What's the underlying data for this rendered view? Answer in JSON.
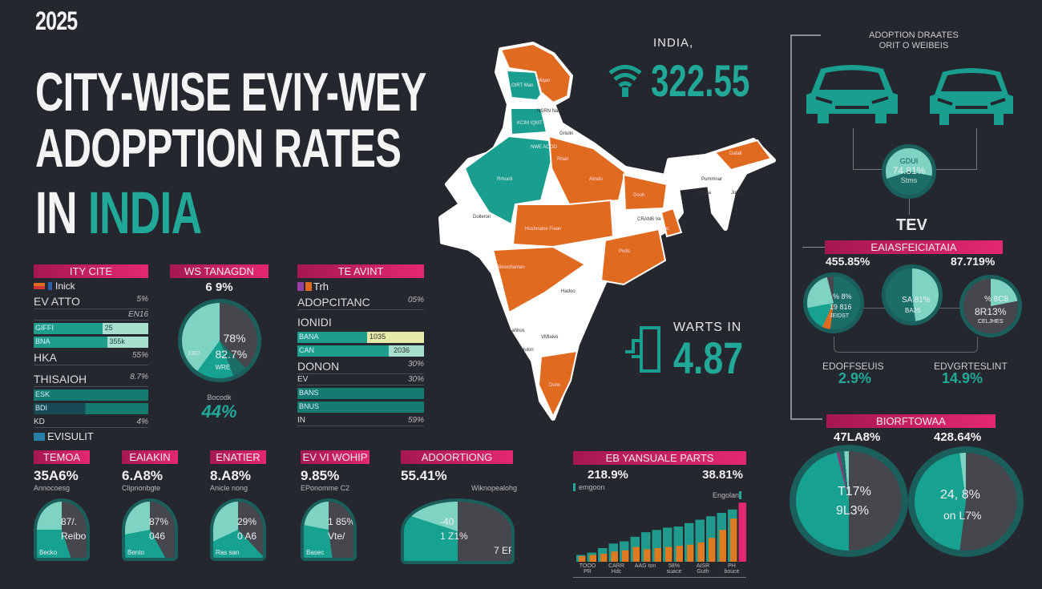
{
  "title": {
    "year": "2025",
    "line1": "CITY-WISE EVIY-WEY",
    "line2": "ADOPPTION RATES",
    "line3_prefix": "IN ",
    "line3_accent": "INDIA"
  },
  "colors": {
    "background": "#24272e",
    "teal": "#22a898",
    "light_teal": "#7fd3c2",
    "orange": "#e06a1f",
    "pink": "#e4286f",
    "dark_slice": "#46474c"
  },
  "panel1": {
    "header": "ITY CITE",
    "legend": "Inick",
    "rows": [
      {
        "label": "EV ATTO",
        "value": "5%"
      },
      {
        "label": "",
        "value": "EN16"
      },
      {
        "bar": "GIFFI",
        "value": "25",
        "fill": 0.6
      },
      {
        "bar": "BNA",
        "value": "355k",
        "fill": 0.64
      },
      {
        "label": "HKA",
        "value": "55%"
      },
      {
        "label": "THISAIOH",
        "value": "8.7%"
      },
      {
        "bar": "ESK",
        "fill": 1
      },
      {
        "bar": "BDI",
        "fill": 1
      },
      {
        "label": "KD",
        "value": "4%"
      }
    ]
  },
  "panel2": {
    "header": "WS TANAGDN",
    "value": "6 9%",
    "pie_labels": [
      "78%",
      "82.7%",
      "1307",
      "WRE"
    ],
    "caption": "Bocodk",
    "big_value": "44%"
  },
  "panel3": {
    "header": "TE AVINT",
    "legend": "Trh",
    "rows": [
      {
        "label": "ADOPCITANC",
        "value": "05%"
      },
      {
        "label": "IONIDI",
        "value": ""
      },
      {
        "bar": "BANA",
        "value": "1035",
        "fill": 0.55
      },
      {
        "bar": "CAN",
        "value": "2036",
        "fill": 0.7
      },
      {
        "label": "DONON",
        "value": "30%"
      },
      {
        "label": "EV",
        "value": "30%"
      },
      {
        "bar": "BANS",
        "fill": 1
      },
      {
        "bar": "BNUS",
        "fill": 1
      },
      {
        "label": "IN",
        "value": "59%"
      }
    ]
  },
  "section_label": "EVISULIT",
  "mini_cards": [
    {
      "header": "TEMOA",
      "value": "35A6%",
      "sub": "Annocoesg",
      "pie": [
        "87/.",
        "Reibo"
      ],
      "footer": "Becko",
      "share": 0.45
    },
    {
      "header": "EAIAKIN",
      "value": "6.A8%",
      "sub": "Clipnonbgte",
      "pie": [
        "87%",
        "046"
      ],
      "footer": "Bento",
      "share": 0.42
    },
    {
      "header": "ENATIER",
      "value": "8.A8%",
      "sub": "Anicle nong",
      "pie": [
        "29%",
        "0 A6"
      ],
      "footer": "Ras san",
      "share": 0.38
    },
    {
      "header": "EV VI WOHIP",
      "value": "9.85%",
      "sub": "EPonomme C2",
      "pie": [
        "1 85%",
        "Vte/"
      ],
      "footer": "Basec",
      "share": 0.48
    },
    {
      "header": "ADOORTIONG",
      "value": "55.41%",
      "sub": "Wiknopealohg",
      "pie": [
        "-40",
        "1 Z1%",
        "7 ER"
      ],
      "footer": "",
      "share": 0.5
    }
  ],
  "bar_chart": {
    "header": "EB YANSUALE PARTS",
    "value_left": "218.9%",
    "value_right": "38.81%",
    "legend_left": "emgoon",
    "legend_right": "Engolan",
    "series_teal": [
      6,
      8,
      12,
      16,
      18,
      22,
      26,
      28,
      30,
      31,
      34,
      37,
      40,
      43,
      46
    ],
    "series_orange": [
      5,
      6,
      7,
      9,
      10,
      13,
      11,
      12,
      13,
      14,
      15,
      17,
      21,
      28,
      38
    ],
    "highlight_last": 52,
    "x_labels": [
      "TOOO PR",
      "CARR Hdc",
      "AAG ton",
      "58% suace",
      "AISR Guth",
      "PH bouce"
    ]
  },
  "india_stat": {
    "label": "INDIA,",
    "value": "322.55"
  },
  "warts_stat": {
    "label": "WARTS IN",
    "value": "4.87"
  },
  "map_labels": [
    "OIRT Man",
    "Miqan",
    "NSRN Nam",
    "KCIM IQMT",
    "Griulin",
    "NWE AOOD",
    "Rhan",
    "Rrhuoti",
    "Alindo",
    "Dolleron",
    "Dooh",
    "Hoshnaine Fiaan",
    "CRANB Ve",
    "Tubc",
    "Slinochaman",
    "Hadoo",
    "Pudo",
    "Lahhos",
    "VMlalvo",
    "Hulon",
    "Duno",
    "Dafali",
    "Pummnar",
    "Bonsa",
    "Joha"
  ],
  "right": {
    "title1": "ADOPTION DRAATES",
    "title2": "ORIT O WEIBEIS",
    "center_circle": [
      "GDUI",
      "74.81%",
      "Stms"
    ],
    "tev": "TEV",
    "band1": "EAIASFEICIATAIA",
    "v1": "455.85%",
    "v2": "87.719%",
    "small_pies": [
      [
        "% 8%",
        "19 816",
        "JEIDST"
      ],
      [
        "SA 81%",
        "BAJS"
      ],
      [
        "% 8C8",
        "8R13%",
        "CELJHES"
      ]
    ],
    "stat1_label": "EDOFFSEUIS",
    "stat1_value": "2.9%",
    "stat2_label": "EDVGRTESLINT",
    "stat2_value": "14.9%",
    "band2": "BIORFTOWAA",
    "v3": "47LA8%",
    "v4": "428.64%",
    "big_pies": [
      [
        "T17%",
        "9L3%"
      ],
      [
        "24, 8%",
        "on L7%"
      ]
    ]
  }
}
